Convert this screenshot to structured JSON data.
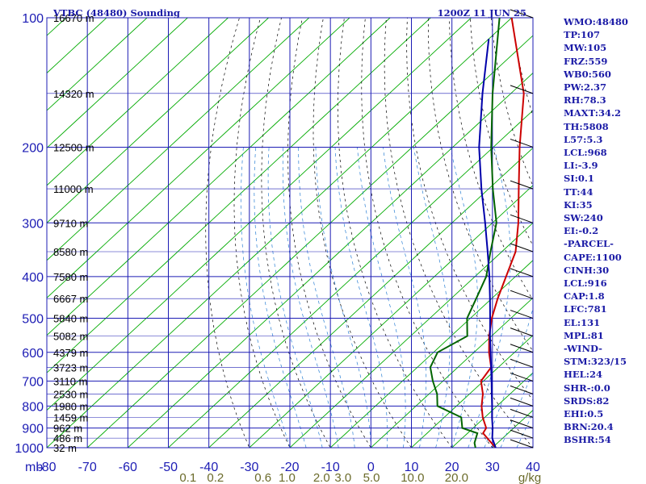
{
  "header": {
    "title": "VTBC (48480) Sounding",
    "valid_time": "1200Z 11 JUN 25"
  },
  "axes": {
    "pressure_unit_label": "mb",
    "pressure_ticks": [
      "100",
      "200",
      "300",
      "400",
      "500",
      "600",
      "700",
      "800",
      "900",
      "1000"
    ],
    "temperature_ticks": [
      "-80",
      "-70",
      "-60",
      "-50",
      "-40",
      "-30",
      "-20",
      "-10",
      "0",
      "10",
      "20",
      "30",
      "40"
    ],
    "mixing_ratio_ticks": [
      "0.1",
      "0.2",
      "0.6",
      "1.0",
      "2.0",
      "3.0",
      "5.0",
      "10.0",
      "20.0"
    ],
    "mixing_ratio_unit": "g/kg",
    "height_labels": [
      "16670 m",
      "14320 m",
      "12500 m",
      "11000 m",
      "9710 m",
      "8580 m",
      "7580 m",
      "6667 m",
      "5840 m",
      "5082 m",
      "4379 m",
      "3723 m",
      "3110 m",
      "2530 m",
      "1980 m",
      "1459 m",
      "962 m",
      "486 m",
      "32 m"
    ]
  },
  "indices": [
    "WMO:48480",
    "TP:107",
    "MW:105",
    "FRZ:559",
    "WB0:560",
    "PW:2.37",
    "RH:78.3",
    "MAXT:34.2",
    "TH:5808",
    "L57:5.3",
    "LCL:968",
    "LI:-3.9",
    "SI:0.1",
    "TT:44",
    "KI:35",
    "SW:240",
    "EI:-0.2",
    "-PARCEL-",
    "CAPE:1100",
    "CINH:30",
    "LCL:916",
    "CAP:1.8",
    "LFC:781",
    "EL:131",
    "MPL:81",
    "-WIND-",
    "STM:323/15",
    "HEL:24",
    "SHR-:0.0",
    "SRDS:82",
    "EHI:0.5",
    "BRN:20.4",
    "BSHR:54"
  ],
  "colors": {
    "frame": "#1c1cb4",
    "isotherm": "#00aa00",
    "dry_adiabat": "#000000",
    "moist_adiabat": "#2a7fd4",
    "mixing_ratio_label": "#6b6b2a",
    "temperature": "#cc0000",
    "dewpoint": "#006400",
    "parcel": "#0000aa"
  },
  "chart_data": {
    "type": "line",
    "title": "VTBC (48480) Sounding",
    "xlabel": "",
    "ylabel": "",
    "xlim": [
      -80,
      40
    ],
    "ylim": [
      1000,
      100
    ],
    "y_scale": "log",
    "grid": true,
    "series": [
      {
        "name": "",
        "role": "temperature",
        "points": [
          [
            30.8,
            1000
          ],
          [
            28.5,
            975
          ],
          [
            23.8,
            925
          ],
          [
            23.2,
            900
          ],
          [
            19.5,
            850
          ],
          [
            16.2,
            800
          ],
          [
            13.3,
            750
          ],
          [
            9.4,
            700
          ],
          [
            8.2,
            650
          ],
          [
            3.7,
            600
          ],
          [
            -0.6,
            550
          ],
          [
            -4.7,
            500
          ],
          [
            -8.5,
            450
          ],
          [
            -12.3,
            400
          ],
          [
            -16.6,
            350
          ],
          [
            -23.6,
            300
          ],
          [
            -32.6,
            250
          ],
          [
            -43.5,
            200
          ],
          [
            -56.8,
            150
          ],
          [
            -80.0,
            100
          ]
        ]
      },
      {
        "name": "",
        "role": "dewpoint",
        "points": [
          [
            25.8,
            1000
          ],
          [
            24.3,
            975
          ],
          [
            22.4,
            925
          ],
          [
            17.3,
            900
          ],
          [
            14.2,
            850
          ],
          [
            5.3,
            800
          ],
          [
            2.0,
            750
          ],
          [
            -2.5,
            700
          ],
          [
            -6.8,
            650
          ],
          [
            -9.0,
            600
          ],
          [
            -6.0,
            550
          ],
          [
            -10.8,
            500
          ],
          [
            -13.8,
            450
          ],
          [
            -17.2,
            400
          ],
          [
            -22.8,
            350
          ],
          [
            -29.0,
            300
          ],
          [
            -39.0,
            250
          ],
          [
            -50.5,
            200
          ],
          [
            -64.5,
            150
          ],
          [
            -83.0,
            100
          ]
        ]
      },
      {
        "name": "",
        "role": "parcel",
        "points": [
          [
            30.8,
            1000
          ],
          [
            27.4,
            950
          ],
          [
            24.8,
            900
          ],
          [
            21.8,
            850
          ],
          [
            18.8,
            800
          ],
          [
            15.5,
            750
          ],
          [
            12.0,
            700
          ],
          [
            8.2,
            650
          ],
          [
            4.1,
            600
          ],
          [
            -0.4,
            550
          ],
          [
            -5.1,
            500
          ],
          [
            -10.4,
            450
          ],
          [
            -16.4,
            400
          ],
          [
            -23.5,
            350
          ],
          [
            -31.8,
            300
          ],
          [
            -41.8,
            250
          ],
          [
            -53.5,
            200
          ],
          [
            -67.0,
            150
          ],
          [
            -80.0,
            112
          ]
        ]
      }
    ]
  }
}
